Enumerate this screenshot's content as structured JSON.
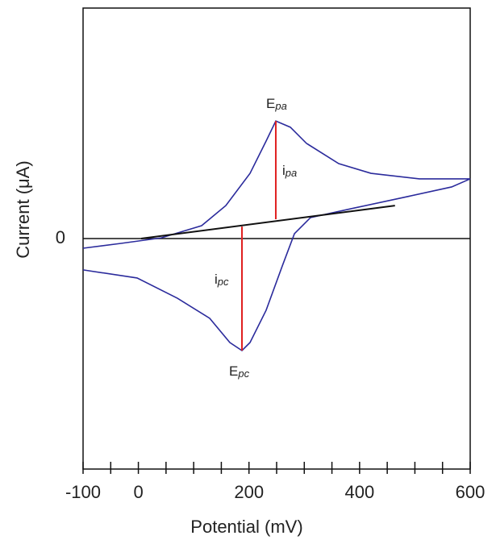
{
  "chart_data": {
    "type": "line",
    "x_label": "Potential (mV)",
    "y_label": "Current (μA)",
    "xlim": [
      -100,
      600
    ],
    "ylim": [
      -10,
      10
    ],
    "xticks": [
      -100,
      0,
      200,
      400,
      600
    ],
    "xminorticks": [
      -50,
      50,
      100,
      150,
      250,
      300,
      350,
      450,
      500,
      550
    ],
    "yticks": [
      0
    ],
    "series": [
      {
        "color": "#2b2b9c",
        "x": [
          -100,
          -31.5,
          41.5,
          114.4,
          158.1,
          201.9,
          231,
          248.5,
          274.8,
          304,
          362.3,
          420.6,
          508.1,
          600,
          566.5,
          479,
          391.5,
          311.3,
          282.2,
          260.2,
          231,
          201.9,
          187.3,
          165.4,
          129,
          70.6,
          -2.3,
          -100
        ],
        "values": [
          -0.42,
          -0.21,
          0.03,
          0.56,
          1.43,
          2.83,
          4.23,
          5.1,
          4.83,
          4.13,
          3.25,
          2.83,
          2.59,
          2.59,
          2.24,
          1.78,
          1.33,
          0.91,
          0.21,
          -1.19,
          -3.11,
          -4.51,
          -4.86,
          -4.51,
          -3.46,
          -2.59,
          -1.71,
          -1.36
        ]
      },
      {
        "color": "#111111",
        "x": [
          5,
          464
        ],
        "values": [
          0,
          1.43
        ]
      },
      {
        "color": "#e02020",
        "x": [
          248.5,
          248.5
        ],
        "values": [
          5.1,
          0.84
        ]
      },
      {
        "color": "#e02020",
        "x": [
          187.3,
          187.3
        ],
        "values": [
          -4.86,
          0.52
        ]
      }
    ],
    "annotations": [
      {
        "main": "E",
        "sub": "pa"
      },
      {
        "main": "i",
        "sub": "pa"
      },
      {
        "main": "i",
        "sub": "pc"
      },
      {
        "main": "E",
        "sub": "pc"
      }
    ]
  }
}
